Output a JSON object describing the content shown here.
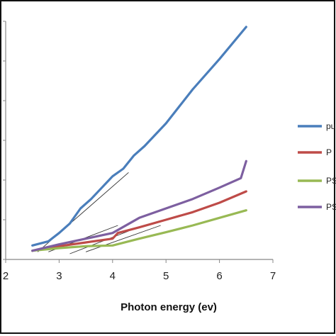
{
  "chart_data": {
    "type": "line",
    "xlabel": "Photon energy (ev)",
    "ylabel": "",
    "xlim": [
      2,
      7
    ],
    "ylim": [
      0,
      6.3
    ],
    "x_ticks": [
      "2",
      "3",
      "4",
      "5",
      "6",
      "7"
    ],
    "grid": false,
    "legend_position": "right",
    "series": [
      {
        "name": "pu",
        "color": "#4a7ebb",
        "x": [
          2.5,
          2.8,
          3.0,
          3.2,
          3.4,
          3.6,
          3.8,
          4.0,
          4.2,
          4.4,
          4.6,
          5.0,
          5.5,
          6.0,
          6.5
        ],
        "y": [
          0.37,
          0.48,
          0.7,
          0.95,
          1.35,
          1.6,
          1.9,
          2.2,
          2.4,
          2.75,
          3.0,
          3.6,
          4.5,
          5.3,
          6.15
        ]
      },
      {
        "name": "P",
        "color": "#be4b48",
        "x": [
          2.5,
          3.0,
          3.5,
          4.0,
          4.1,
          4.5,
          5.0,
          5.5,
          6.0,
          6.5
        ],
        "y": [
          0.23,
          0.35,
          0.45,
          0.55,
          0.7,
          0.85,
          1.05,
          1.25,
          1.5,
          1.8
        ]
      },
      {
        "name": "PS",
        "color": "#98b954",
        "x": [
          2.5,
          3.0,
          3.5,
          4.0,
          4.5,
          5.0,
          5.5,
          6.0,
          6.5
        ],
        "y": [
          0.23,
          0.3,
          0.35,
          0.37,
          0.55,
          0.72,
          0.9,
          1.1,
          1.3
        ]
      },
      {
        "name": "PS",
        "color": "#7d5fa0",
        "x": [
          2.5,
          3.0,
          3.5,
          4.0,
          4.5,
          5.0,
          5.5,
          6.0,
          6.4,
          6.5
        ],
        "y": [
          0.23,
          0.4,
          0.55,
          0.7,
          1.1,
          1.35,
          1.6,
          1.9,
          2.15,
          2.6
        ]
      }
    ],
    "fit_lines": [
      {
        "x": [
          2.6,
          4.3
        ],
        "y": [
          0.2,
          2.3
        ]
      },
      {
        "x": [
          2.8,
          4.1
        ],
        "y": [
          0.2,
          0.9
        ]
      },
      {
        "x": [
          3.2,
          4.3
        ],
        "y": [
          0.15,
          0.75
        ]
      },
      {
        "x": [
          3.5,
          4.9
        ],
        "y": [
          0.2,
          0.9
        ]
      }
    ]
  }
}
